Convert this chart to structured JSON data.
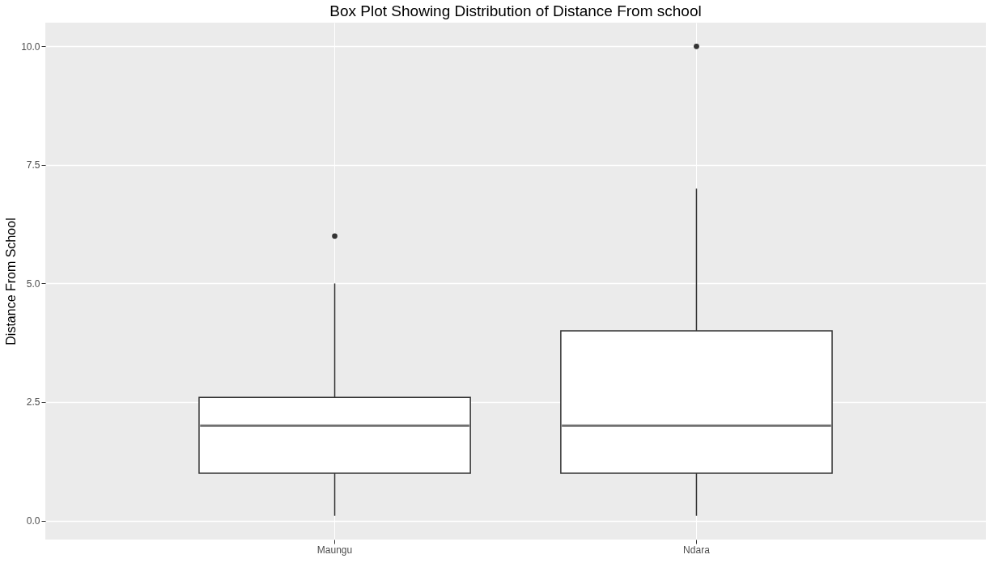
{
  "chart_data": {
    "type": "box",
    "title": "Box Plot Showing Distribution of Distance From school",
    "ylabel": "Distance From School",
    "categories": [
      "Maungu",
      "Ndara"
    ],
    "boxes": [
      {
        "low": 0.1,
        "q1": 1.0,
        "median": 2.0,
        "q3": 2.6,
        "high": 5.0,
        "outliers": [
          6.0
        ]
      },
      {
        "low": 0.1,
        "q1": 1.0,
        "median": 2.0,
        "q3": 4.0,
        "high": 7.0,
        "outliers": [
          10.0
        ]
      }
    ],
    "ylim": [
      -0.4,
      10.5
    ],
    "yticks": [
      {
        "value": 0,
        "label": "0.0"
      },
      2.5,
      {
        "value": 5,
        "label": "5.0"
      },
      7.5,
      {
        "value": 10,
        "label": "10.0"
      }
    ],
    "grid": true
  }
}
